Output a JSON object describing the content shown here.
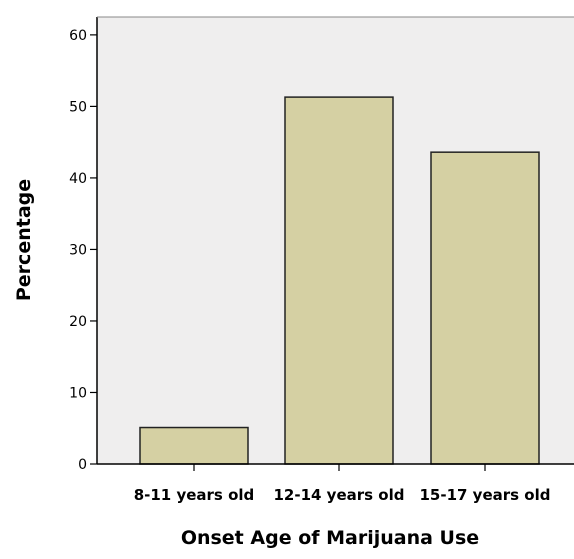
{
  "chart_data": {
    "type": "bar",
    "title": "",
    "xlabel": "Onset Age of Marijuana Use",
    "ylabel": "Percentage",
    "categories": [
      "8-11 years old",
      "12-14 years old",
      "15-17 years old"
    ],
    "values": [
      5.1,
      51.3,
      43.6
    ],
    "ylim": [
      0,
      60
    ],
    "yticks": [
      0,
      10,
      20,
      30,
      40,
      50,
      60
    ],
    "grid": false,
    "legend": "none",
    "colors": {
      "plot_background": "#efeeee",
      "bar_fill": "#d5d0a3",
      "bar_stroke": "#222222",
      "axis": "#000000"
    }
  }
}
